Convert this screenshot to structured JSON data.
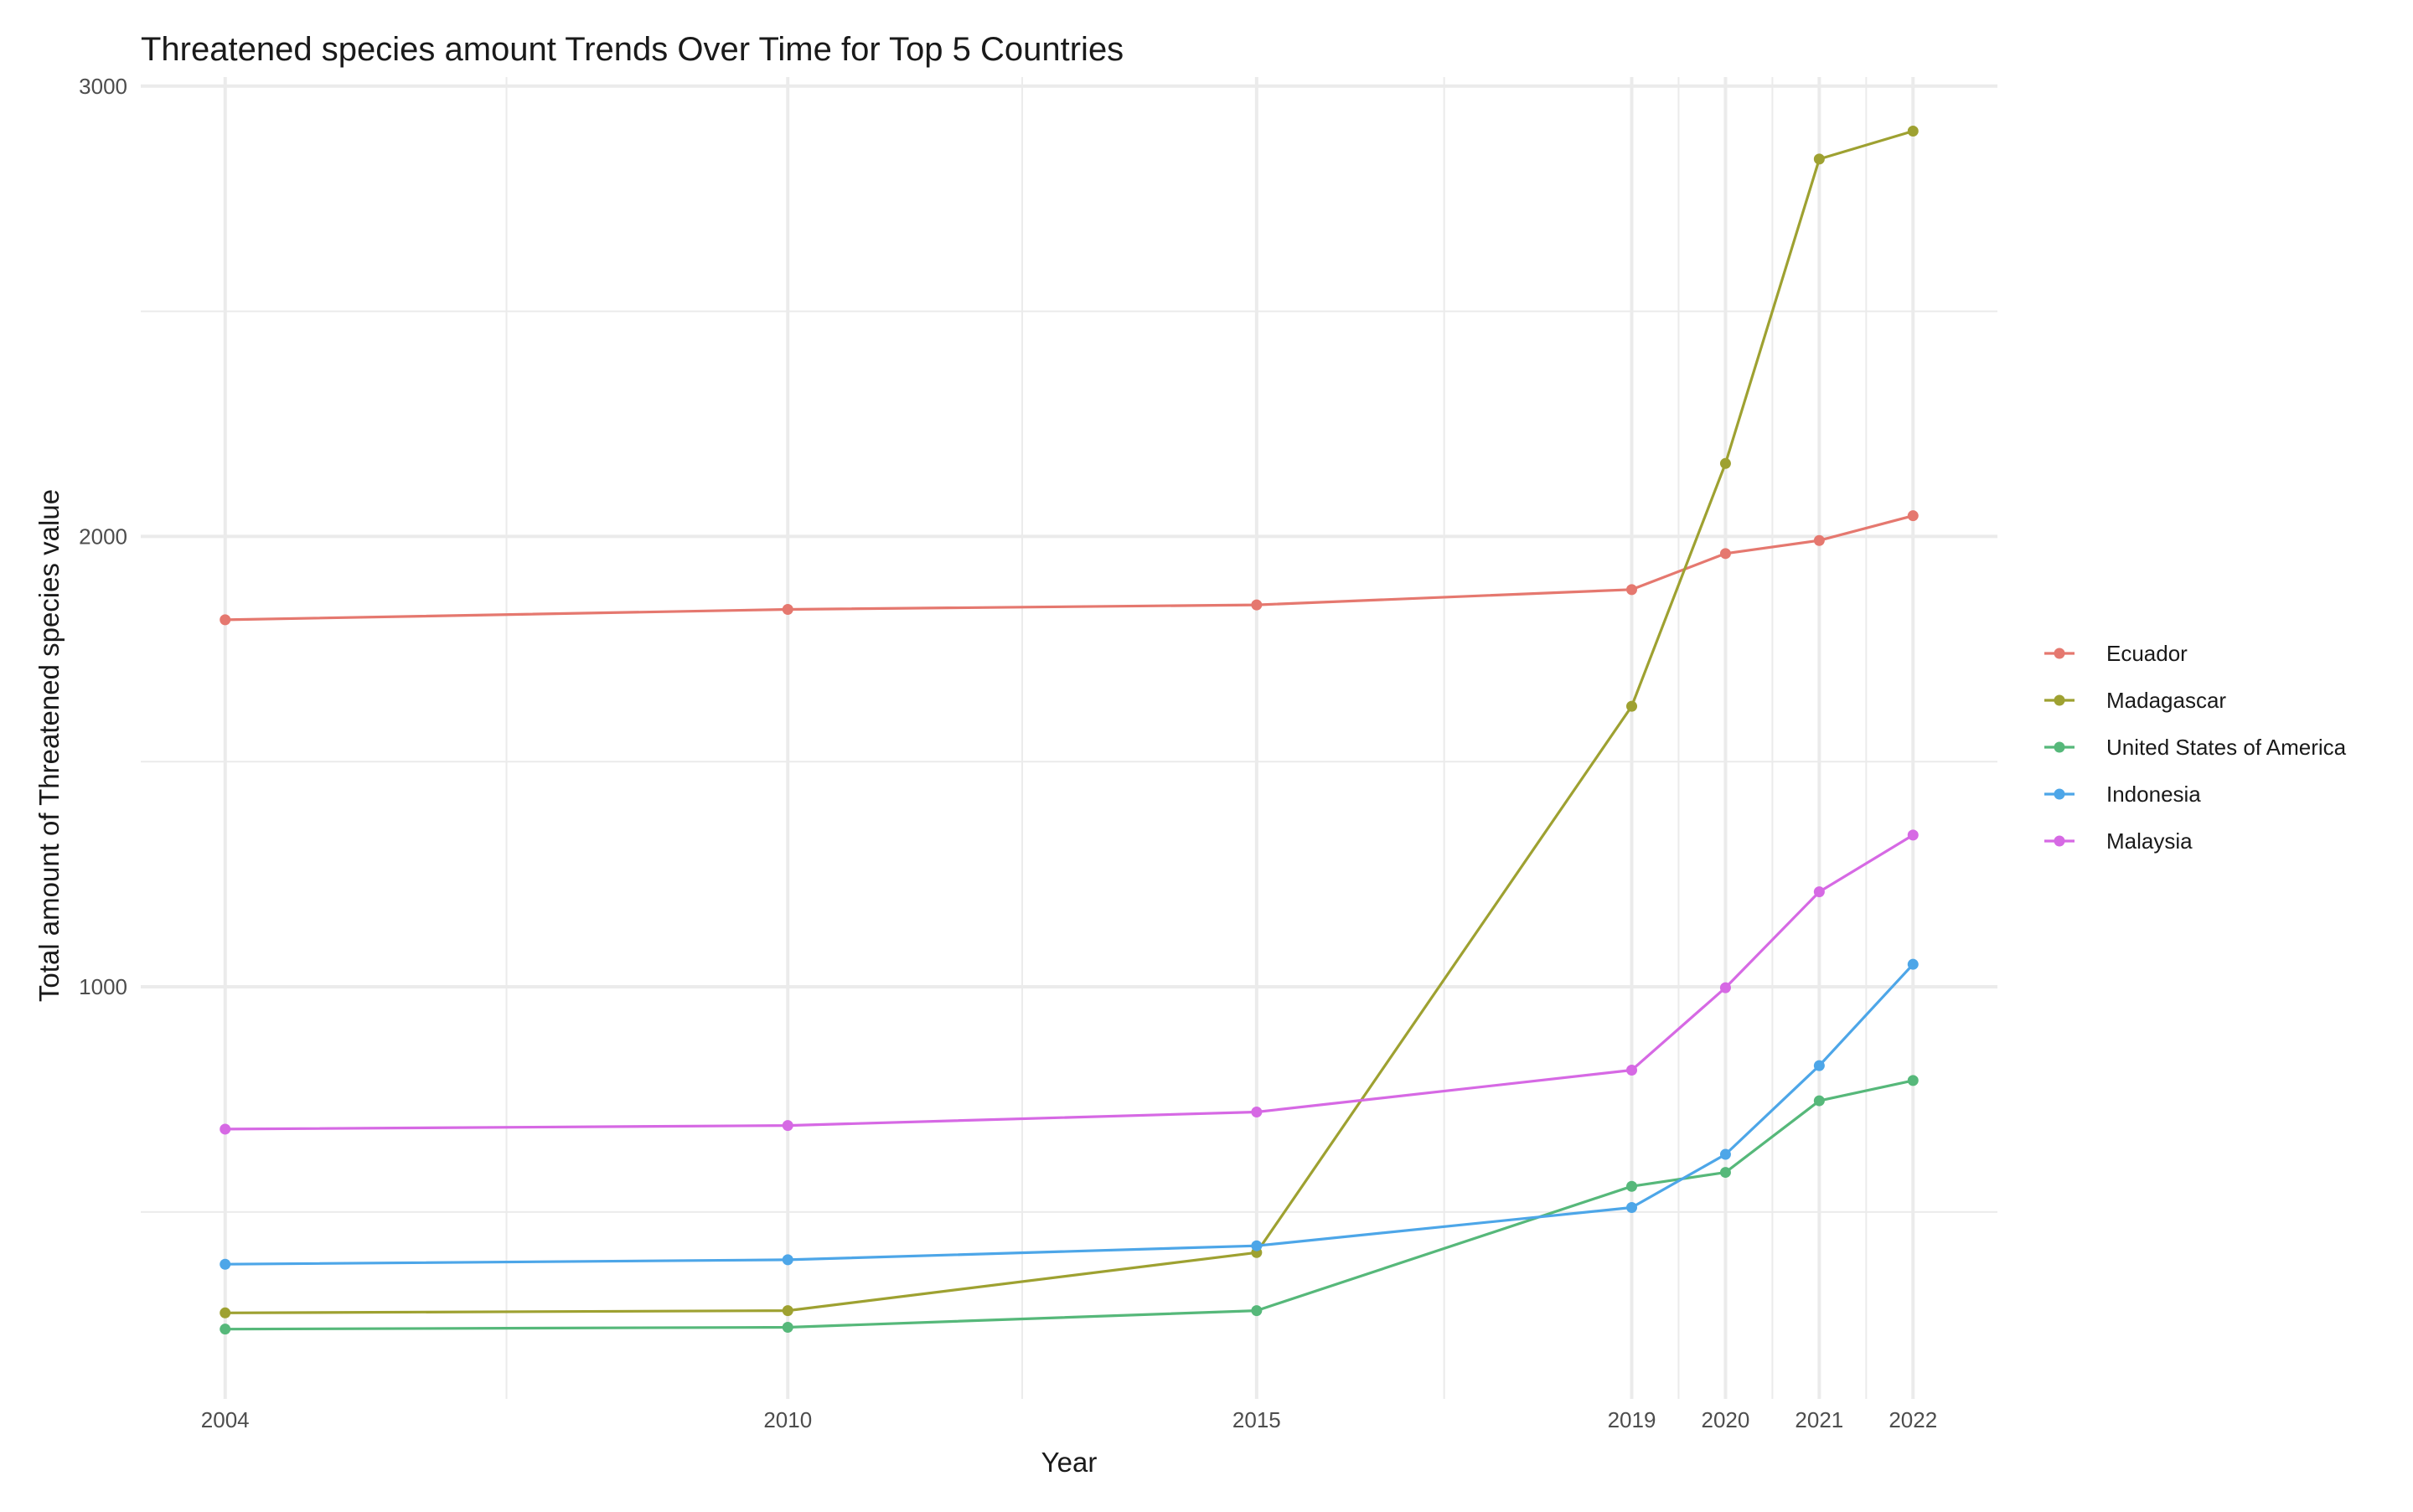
{
  "chart_data": {
    "type": "line",
    "title": "Threatened species amount Trends Over Time for Top 5 Countries",
    "xlabel": "Year",
    "ylabel": "Total amount of Threatened species value",
    "x": [
      2004,
      2010,
      2015,
      2019,
      2020,
      2021,
      2022
    ],
    "x_tick_labels": [
      "2004",
      "2010",
      "2015",
      "2019",
      "2020",
      "2021",
      "2022"
    ],
    "xlim": [
      2003.1,
      2022.9
    ],
    "y_ticks": [
      1000,
      2000,
      3000
    ],
    "y_tick_labels": [
      "1000",
      "2000",
      "3000"
    ],
    "ylim": [
      85,
      3020
    ],
    "grid": true,
    "legend_position": "right",
    "series": [
      {
        "name": "Ecuador",
        "color": "#E5786F",
        "values": [
          1815,
          1838,
          1848,
          1882,
          1962,
          1991,
          2046
        ]
      },
      {
        "name": "Madagascar",
        "color": "#9EA131",
        "values": [
          276,
          281,
          410,
          1623,
          2162,
          2838,
          2900
        ]
      },
      {
        "name": "United States of America",
        "color": "#56B87A",
        "values": [
          240,
          244,
          281,
          557,
          588,
          747,
          792
        ]
      },
      {
        "name": "Indonesia",
        "color": "#4DA6E8",
        "values": [
          384,
          394,
          425,
          510,
          628,
          825,
          1050
        ]
      },
      {
        "name": "Malaysia",
        "color": "#D669E4",
        "values": [
          684,
          692,
          722,
          815,
          998,
          1211,
          1337
        ]
      }
    ]
  }
}
